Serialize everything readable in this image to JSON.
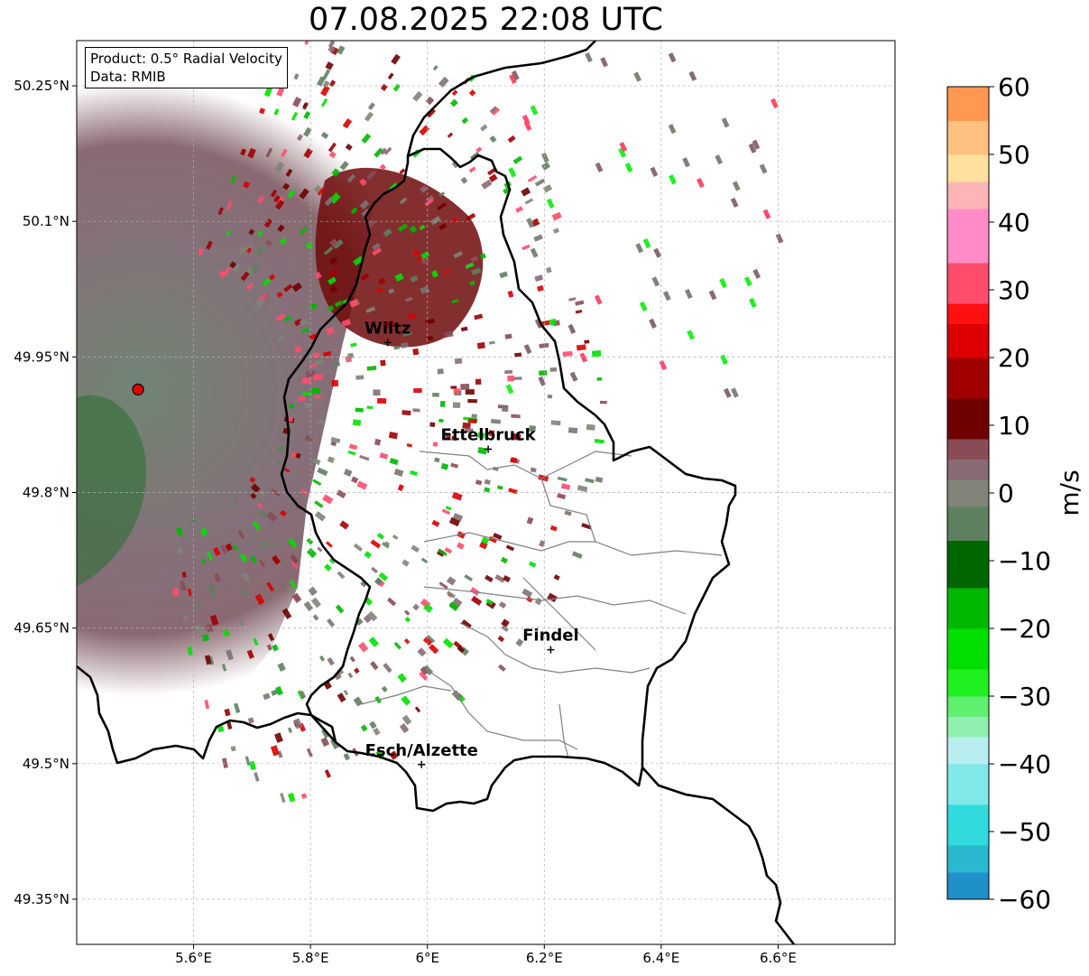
{
  "title": "07.08.2025 22:08 UTC",
  "info": {
    "product": "Product: 0.5° Radial Velocity",
    "data": "Data: RMIB"
  },
  "map": {
    "lon_range": [
      5.4,
      6.8
    ],
    "lat_range": [
      49.3,
      50.3
    ],
    "lon_ticks": [
      {
        "value": 5.6,
        "label": "5.6°E"
      },
      {
        "value": 5.8,
        "label": "5.8°E"
      },
      {
        "value": 6.0,
        "label": "6°E"
      },
      {
        "value": 6.2,
        "label": "6.2°E"
      },
      {
        "value": 6.4,
        "label": "6.4°E"
      },
      {
        "value": 6.6,
        "label": "6.6°E"
      }
    ],
    "lat_ticks": [
      {
        "value": 50.25,
        "label": "50.25°N"
      },
      {
        "value": 50.1,
        "label": "50.1°N"
      },
      {
        "value": 49.95,
        "label": "49.95°N"
      },
      {
        "value": 49.8,
        "label": "49.8°N"
      },
      {
        "value": 49.65,
        "label": "49.65°N"
      },
      {
        "value": 49.5,
        "label": "49.5°N"
      },
      {
        "value": 49.35,
        "label": "49.35°N"
      }
    ],
    "radar_site": {
      "lon": 5.505,
      "lat": 49.914
    },
    "cities": [
      {
        "name": "Wiltz",
        "lon": 5.932,
        "lat": 49.966
      },
      {
        "name": "Ettelbruck",
        "lon": 6.104,
        "lat": 49.848
      },
      {
        "name": "Findel",
        "lon": 6.211,
        "lat": 49.626
      },
      {
        "name": "Esch/Alzette",
        "lon": 5.99,
        "lat": 49.499
      }
    ]
  },
  "colorbar": {
    "label": "m/s",
    "min": -60,
    "max": 60,
    "ticks": [
      {
        "value": 60,
        "label": "60"
      },
      {
        "value": 50,
        "label": "50"
      },
      {
        "value": 40,
        "label": "40"
      },
      {
        "value": 30,
        "label": "30"
      },
      {
        "value": 20,
        "label": "20"
      },
      {
        "value": 10,
        "label": "10"
      },
      {
        "value": 0,
        "label": "0"
      },
      {
        "value": -10,
        "label": "−10"
      },
      {
        "value": -20,
        "label": "−20"
      },
      {
        "value": -30,
        "label": "−30"
      },
      {
        "value": -40,
        "label": "−40"
      },
      {
        "value": -50,
        "label": "−50"
      },
      {
        "value": -60,
        "label": "−60"
      }
    ],
    "stops": [
      {
        "from": -60,
        "to": -56,
        "color": "#2090c8"
      },
      {
        "from": -56,
        "to": -52,
        "color": "#2ab8d0"
      },
      {
        "from": -52,
        "to": -46,
        "color": "#30dadd"
      },
      {
        "from": -46,
        "to": -40,
        "color": "#80e8e8"
      },
      {
        "from": -40,
        "to": -36,
        "color": "#b8eef0"
      },
      {
        "from": -36,
        "to": -33,
        "color": "#90f0b0"
      },
      {
        "from": -33,
        "to": -30,
        "color": "#60f070"
      },
      {
        "from": -30,
        "to": -26,
        "color": "#20f020"
      },
      {
        "from": -26,
        "to": -20,
        "color": "#00e000"
      },
      {
        "from": -20,
        "to": -14,
        "color": "#00b800"
      },
      {
        "from": -14,
        "to": -7,
        "color": "#006600"
      },
      {
        "from": -7,
        "to": -2,
        "color": "#5e8060"
      },
      {
        "from": -2,
        "to": 2,
        "color": "#808478"
      },
      {
        "from": 2,
        "to": 5,
        "color": "#886a74"
      },
      {
        "from": 5,
        "to": 8,
        "color": "#884c56"
      },
      {
        "from": 8,
        "to": 14,
        "color": "#700000"
      },
      {
        "from": 14,
        "to": 20,
        "color": "#a00000"
      },
      {
        "from": 20,
        "to": 25,
        "color": "#dc0000"
      },
      {
        "from": 25,
        "to": 28,
        "color": "#ff1010"
      },
      {
        "from": 28,
        "to": 34,
        "color": "#ff4c6c"
      },
      {
        "from": 34,
        "to": 42,
        "color": "#ff8cc8"
      },
      {
        "from": 42,
        "to": 46,
        "color": "#ffb4b8"
      },
      {
        "from": 46,
        "to": 50,
        "color": "#ffe09c"
      },
      {
        "from": 50,
        "to": 55,
        "color": "#ffc080"
      },
      {
        "from": 55,
        "to": 60,
        "color": "#ff9850"
      }
    ]
  },
  "colors": {
    "grid": "#b0b0b0",
    "border": "#000000",
    "canton_lines": "#808080",
    "radar_marker": "#e00000"
  }
}
